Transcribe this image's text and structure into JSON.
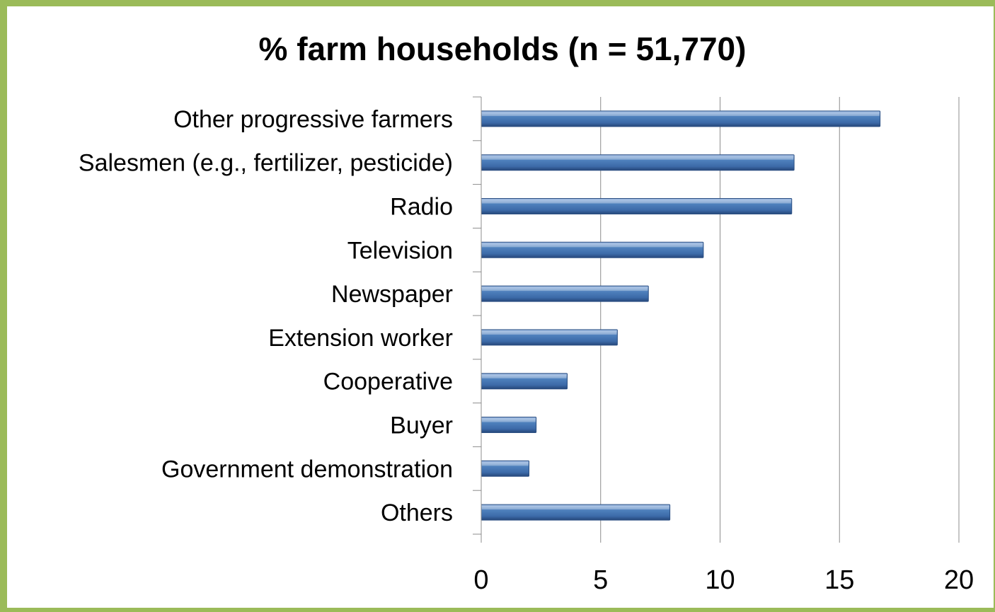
{
  "chart_data": {
    "type": "bar",
    "orientation": "horizontal",
    "title": "% farm households (n = 51,770)",
    "xlabel": "",
    "ylabel": "",
    "categories": [
      "Other progressive farmers",
      "Salesmen (e.g., fertilizer, pesticide)",
      "Radio",
      "Television",
      "Newspaper",
      "Extension worker",
      "Cooperative",
      "Buyer",
      "Government demonstration",
      "Others"
    ],
    "values": [
      16.7,
      13.1,
      13.0,
      9.3,
      7.0,
      5.7,
      3.6,
      2.3,
      2.0,
      7.9
    ],
    "xlim": [
      0,
      20
    ],
    "xticks": [
      "0",
      "5",
      "10",
      "15",
      "20"
    ],
    "grid": true,
    "legend": "none",
    "bar_color": "#4f81bd",
    "border_color": "#9bbb59"
  }
}
